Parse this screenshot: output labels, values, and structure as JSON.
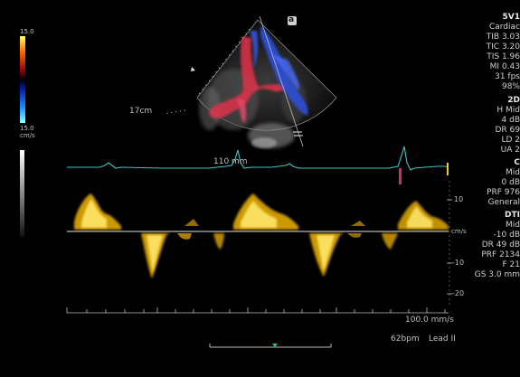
{
  "probe": {
    "name": "5V1",
    "preset": "Cardiac",
    "tib": "TIB 3.03",
    "tic": "TIC 3.20",
    "tis": "TIS 1.96",
    "mi": "MI 0.43",
    "fps": "31 fps",
    "percent": "98%"
  },
  "mode_2d": {
    "header": "2D",
    "res": "H Mid",
    "gain": "4 dB",
    "dr": "DR 69",
    "ld": "LD 2",
    "ua": "UA 2"
  },
  "mode_c": {
    "header": "C",
    "freq": "Mid",
    "gain": "0 dB",
    "prf": "PRF 976",
    "filter": "General"
  },
  "mode_dti": {
    "header": "DTI",
    "freq": "Mid",
    "gain": "-10 dB",
    "dr": "DR 49 dB",
    "prf": "PRF 2134",
    "f": "F 21",
    "gs": "GS 3.0 mm"
  },
  "color_scale": {
    "top": "15.0",
    "bottom": "15.0",
    "unit": "cm/s"
  },
  "image": {
    "depth_label": "17cm",
    "sample_depth": "110 mm",
    "orientation_marker": "a"
  },
  "doppler": {
    "unit": "cm/s",
    "ticks": [
      "10",
      "-10",
      "-20"
    ],
    "sweep_speed": "100.0 mm/s",
    "heart_rate": "62bpm",
    "lead": "Lead II"
  },
  "colors": {
    "ecg": "#3fc6c6",
    "doppler": "#f0b400",
    "doppler_core": "#ffe66a",
    "baseline": "#e6e6e6",
    "scale_green": "#1ec87a",
    "flow_red": "#e0304a",
    "flow_blue": "#2f4fd8"
  }
}
